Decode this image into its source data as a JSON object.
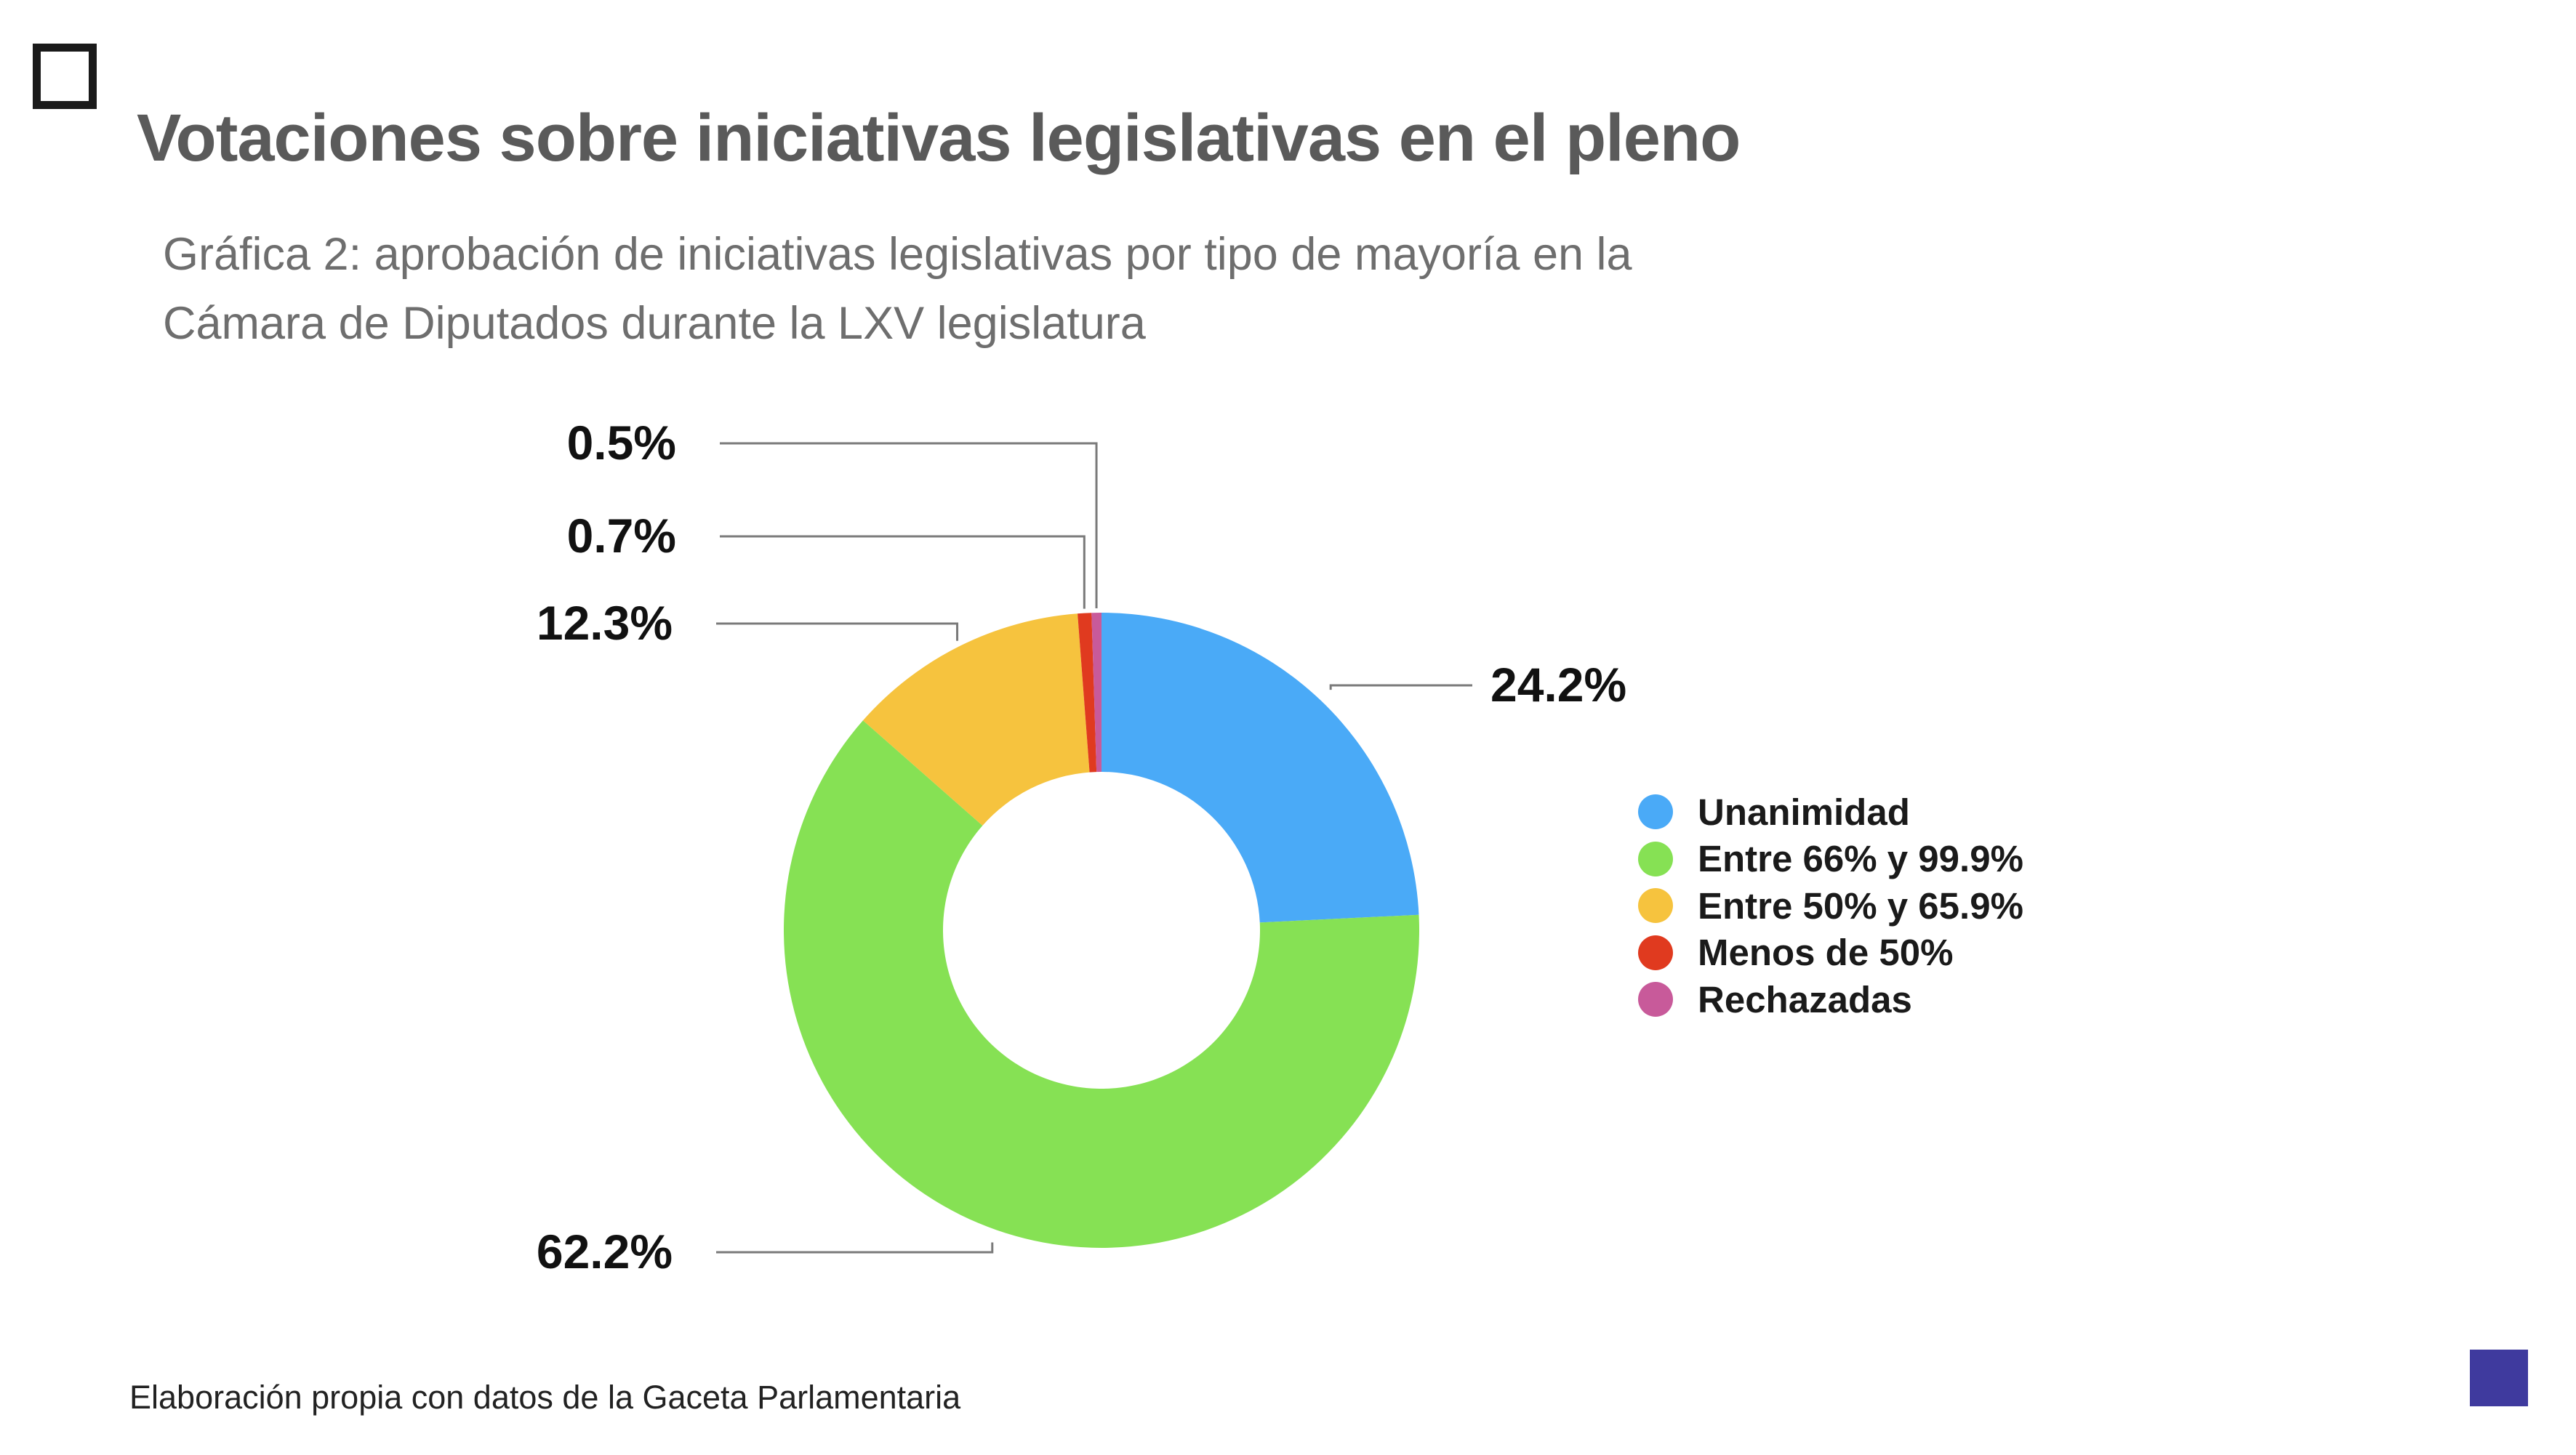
{
  "slide": {
    "title": "Votaciones sobre iniciativas legislativas en el pleno",
    "subtitle_line1": "Gráfica 2: aprobación de iniciativas legislativas por tipo de mayoría  en la",
    "subtitle_line2": "Cámara de Diputados durante la LXV legislatura",
    "source": "Elaboración propia con datos  de la Gaceta Parlamentaria",
    "accent_color": "#3f3a9e"
  },
  "chart_data": {
    "type": "pie",
    "style": "donut",
    "title": "",
    "legend_position": "right",
    "categories": [
      "Unanimidad",
      "Entre 66% y 99.9%",
      "Entre 50% y 65.9%",
      "Menos de 50%",
      "Rechazadas"
    ],
    "values": [
      24.2,
      62.2,
      12.3,
      0.7,
      0.5
    ],
    "labels": [
      "24.2%",
      "62.2%",
      "12.3%",
      "0.7%",
      "0.5%"
    ],
    "colors": [
      "#4aaaf7",
      "#86e154",
      "#f6c33e",
      "#e03a1f",
      "#c85a9a"
    ]
  }
}
